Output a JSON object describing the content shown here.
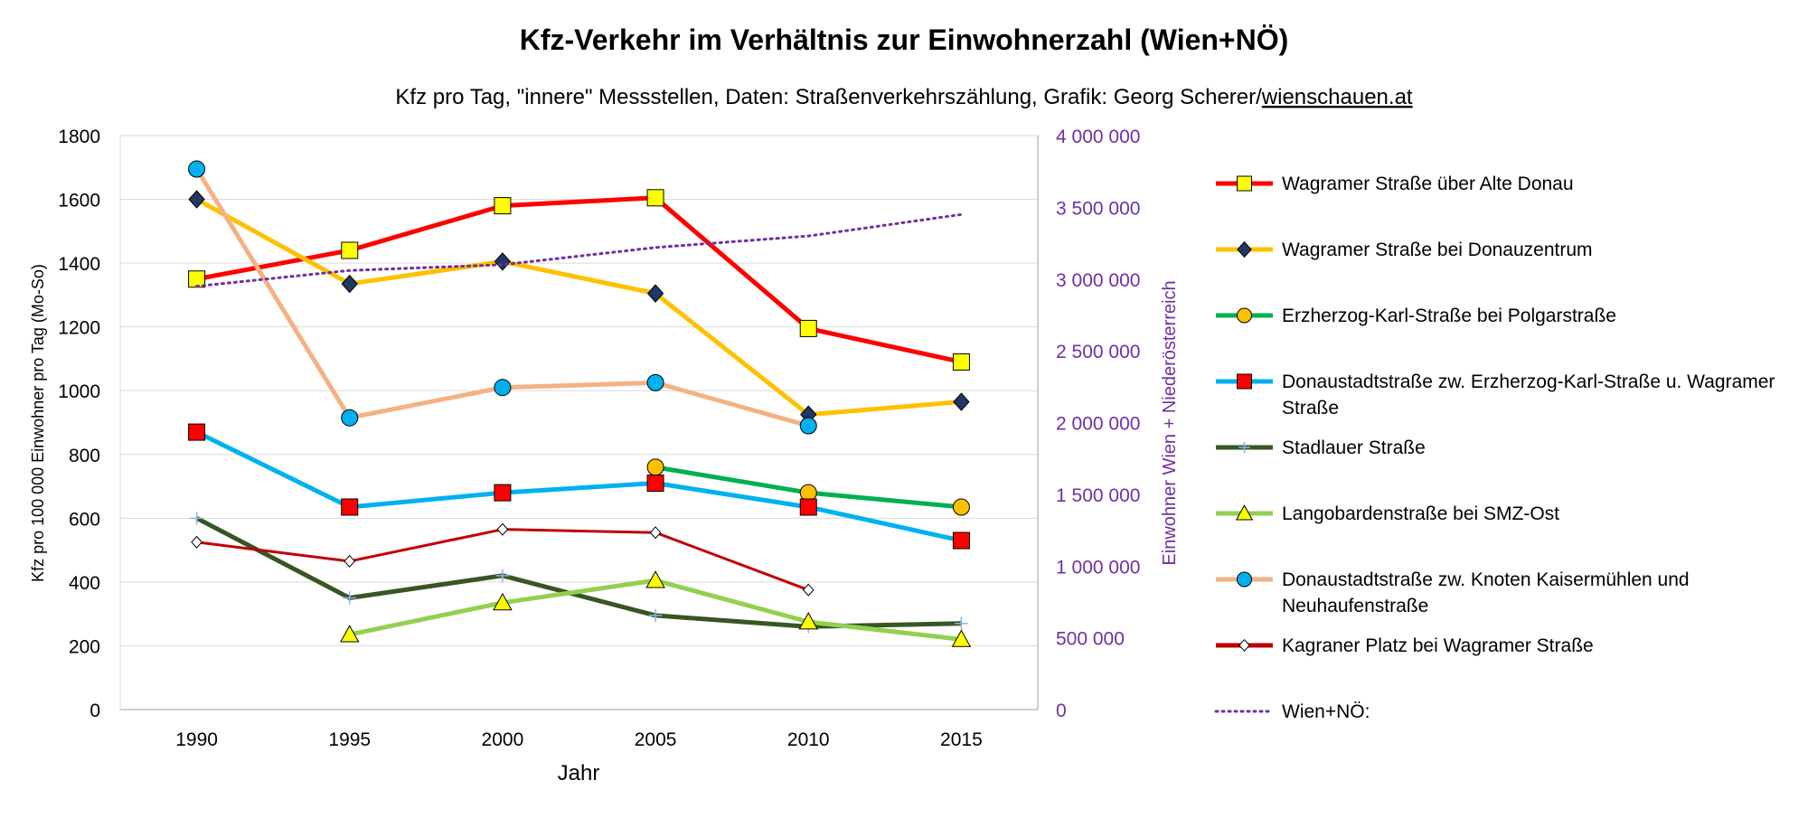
{
  "chart_data": {
    "type": "line",
    "title": "Kfz-Verkehr im Verhältnis zur Einwohnerzahl (Wien+NÖ)",
    "subtitle": "Kfz pro Tag, \"innere\" Messstellen, Daten: Straßenverkehrszählung, Grafik: Georg Scherer/",
    "subtitle_link": "wienschauen.at",
    "xlabel": "Jahr",
    "ylabel": "Kfz pro 100 000 Einwohner pro Tag (Mo-So)",
    "y2label": "Einwohner Wien + Niederösterreich",
    "ylim": [
      0,
      1800
    ],
    "y2lim": [
      0,
      4000000
    ],
    "yticks": [
      "0",
      "200",
      "400",
      "600",
      "800",
      "1000",
      "1200",
      "1400",
      "1600",
      "1800"
    ],
    "y2ticks": [
      "0",
      "500 000",
      "1 000 000",
      "1 500 000",
      "2 000 000",
      "2 500 000",
      "3 000 000",
      "3 500 000",
      "4 000 000"
    ],
    "x": [
      "1990",
      "1995",
      "2000",
      "2005",
      "2010",
      "2015"
    ],
    "grid": true,
    "legend_position": "right",
    "axis_color_secondary": "#7030a0",
    "series": [
      {
        "name": "Wagramer Straße über Alte Donau",
        "color": "#ff0000",
        "marker": "square",
        "marker_fill": "#ffff00",
        "values": [
          1350,
          1440,
          1580,
          1605,
          1195,
          1090
        ]
      },
      {
        "name": "Wagramer Straße bei Donauzentrum",
        "color": "#ffc000",
        "marker": "diamond",
        "marker_fill": "#1f3864",
        "values": [
          1600,
          1335,
          1405,
          1305,
          925,
          965
        ]
      },
      {
        "name": "Erzherzog-Karl-Straße bei Polgarstraße",
        "color": "#00b050",
        "marker": "circle",
        "marker_fill": "#ffc000",
        "values": [
          null,
          null,
          null,
          760,
          680,
          635
        ]
      },
      {
        "name": "Donaustadtstraße zw. Erzherzog-Karl-Straße u. Wagramer Straße",
        "color": "#00b0f0",
        "marker": "square",
        "marker_fill": "#ff0000",
        "values": [
          870,
          635,
          680,
          710,
          635,
          530
        ]
      },
      {
        "name": "Stadlauer Straße",
        "color": "#375623",
        "marker": "plus",
        "marker_fill": "#8db4e2",
        "values": [
          600,
          350,
          420,
          295,
          260,
          270
        ]
      },
      {
        "name": "Langobardenstraße bei SMZ-Ost",
        "color": "#92d050",
        "marker": "triangle",
        "marker_fill": "#ffff00",
        "values": [
          null,
          235,
          335,
          405,
          275,
          220
        ]
      },
      {
        "name": "Donaustadtstraße zw. Knoten Kaisermühlen und Neuhaufenstraße",
        "color": "#f4b183",
        "marker": "circle",
        "marker_fill": "#00b0f0",
        "values": [
          1695,
          915,
          1010,
          1025,
          890,
          null
        ]
      },
      {
        "name": "Kagraner Platz bei Wagramer Straße",
        "color": "#c00000",
        "marker": "diamond",
        "marker_fill": "#ffffff",
        "values": [
          525,
          465,
          565,
          555,
          375,
          null
        ]
      },
      {
        "name": "Wien+NÖ:",
        "color": "#7030a0",
        "marker": "none",
        "dotted": true,
        "axis": "secondary",
        "values": [
          2950000,
          3060000,
          3100000,
          3220000,
          3300000,
          3450000
        ]
      }
    ]
  }
}
